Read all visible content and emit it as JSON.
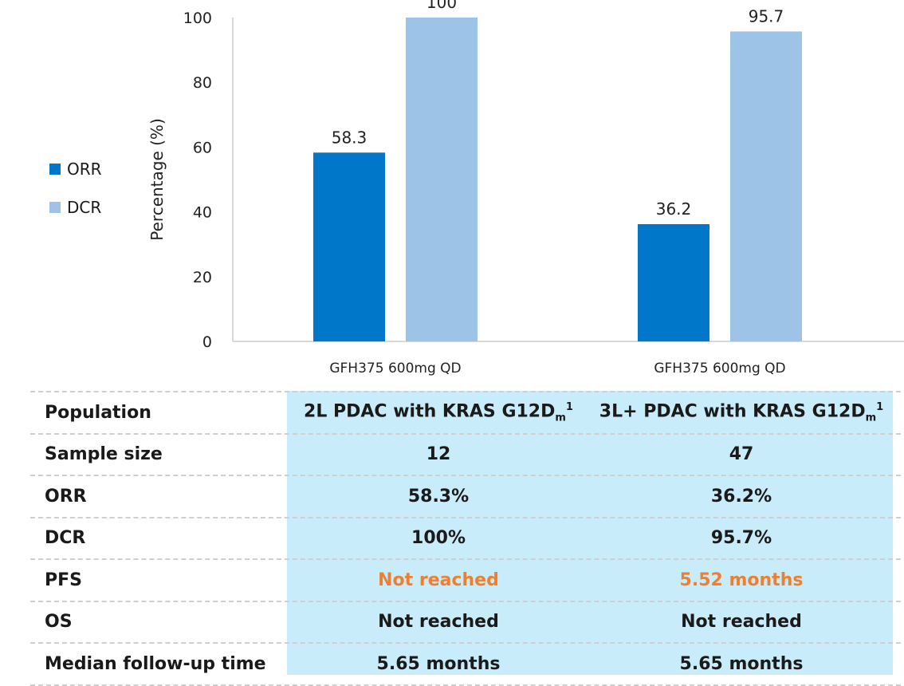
{
  "chart_data": {
    "type": "bar",
    "categories": [
      "GFH375 600mg QD",
      "GFH375 600mg QD"
    ],
    "series": [
      {
        "name": "ORR",
        "values": [
          58.3,
          36.2
        ],
        "color": "#0077c8"
      },
      {
        "name": "DCR",
        "values": [
          100,
          95.7
        ],
        "color": "#9dc3e6"
      }
    ],
    "data_labels": [
      [
        "58.3",
        "36.2"
      ],
      [
        "100",
        "95.7"
      ]
    ],
    "ylabel": "Percentage (%)",
    "ylim": [
      0,
      100
    ],
    "yticks": [
      0,
      20,
      40,
      60,
      80,
      100
    ],
    "legend_position": "left",
    "grid": false
  },
  "table": {
    "header_label": "Population",
    "columns": [
      {
        "text": "2L PDAC with KRAS G12D",
        "sub": "m",
        "sup": "1"
      },
      {
        "text": "3L+ PDAC with KRAS G12D",
        "sub": "m",
        "sup": "1"
      }
    ],
    "rows": [
      {
        "label": "Sample size",
        "values": [
          "12",
          "47"
        ],
        "highlight": false
      },
      {
        "label": "ORR",
        "values": [
          "58.3%",
          "36.2%"
        ],
        "highlight": false
      },
      {
        "label": "DCR",
        "values": [
          "100%",
          "95.7%"
        ],
        "highlight": false
      },
      {
        "label": "PFS",
        "values": [
          "Not reached",
          "5.52 months"
        ],
        "highlight": true
      },
      {
        "label": "OS",
        "values": [
          "Not reached",
          "Not reached"
        ],
        "highlight": false
      },
      {
        "label": "Median follow-up time",
        "values": [
          "5.65 months",
          "5.65 months"
        ],
        "highlight": false
      }
    ],
    "highlight_color": "#ef7f30",
    "value_bg_color": "#c9ecfb"
  }
}
